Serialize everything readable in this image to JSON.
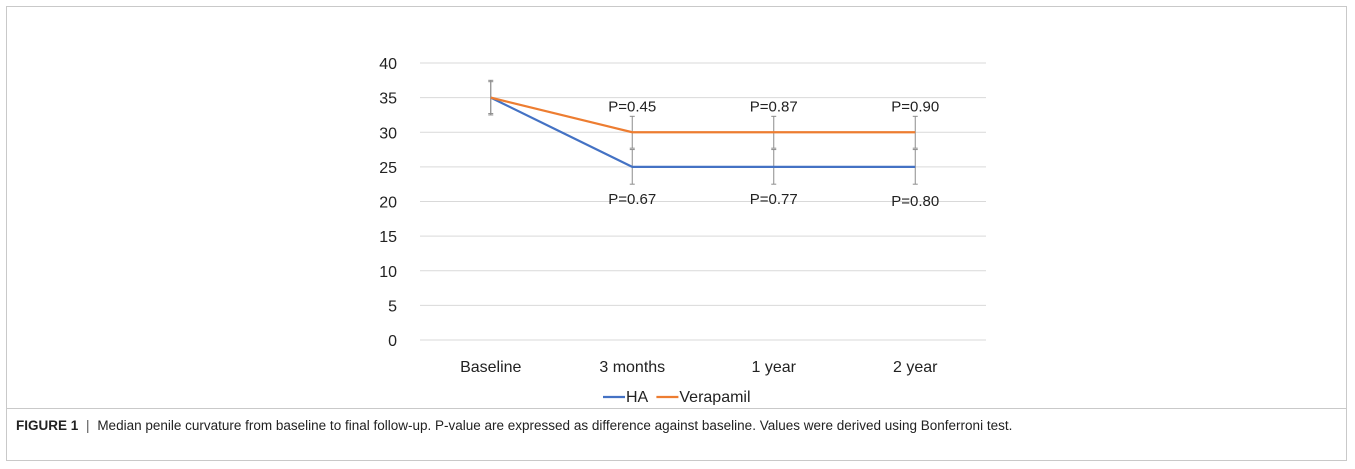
{
  "chart_data": {
    "type": "line",
    "categories": [
      "Baseline",
      "3 months",
      "1 year",
      "2 year"
    ],
    "series": [
      {
        "name": "HA",
        "color": "#4472C4",
        "values": [
          35,
          25,
          25,
          25
        ],
        "errors": [
          2.5,
          2.5,
          2.5,
          2.5
        ],
        "p_labels": [
          "",
          "P=0.67",
          "P=0.77",
          "P=0.80"
        ]
      },
      {
        "name": "Verapamil",
        "color": "#ED7D31",
        "values": [
          35,
          30,
          30,
          30
        ],
        "errors": [
          2.3,
          2.3,
          2.3,
          2.3
        ],
        "p_labels": [
          "",
          "P=0.45",
          "P=0.87",
          "P=0.90"
        ]
      }
    ],
    "ylim": [
      0,
      40
    ],
    "yticks": [
      0,
      5,
      10,
      15,
      20,
      25,
      30,
      35,
      40
    ],
    "xlabel": "",
    "ylabel": "",
    "grid": true,
    "legend": "bottom"
  },
  "caption": {
    "label": "FIGURE 1",
    "separator": "|",
    "text": "Median penile curvature from baseline to final follow-up. P-value are expressed as difference against baseline. Values were derived using Bonferroni test."
  }
}
